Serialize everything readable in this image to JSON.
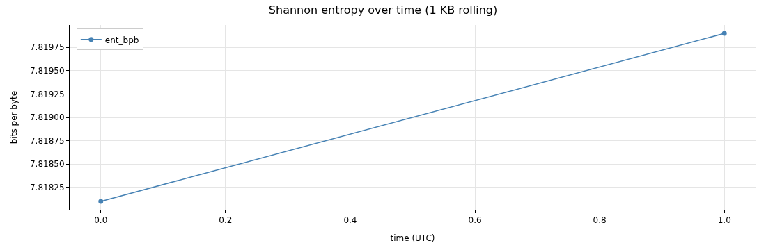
{
  "chart_data": {
    "type": "line",
    "title": "Shannon entropy over time (1 KB rolling)",
    "xlabel": "time (UTC)",
    "ylabel": "bits per byte",
    "x": [
      0,
      1
    ],
    "series": [
      {
        "name": "ent_bpb",
        "color": "#4682b4",
        "values": [
          7.8181,
          7.8199
        ]
      }
    ],
    "xlim": [
      -0.05,
      1.05
    ],
    "xticks": [
      {
        "value": 0,
        "label": "0.0"
      },
      {
        "value": 0.2,
        "label": "0.2"
      },
      {
        "value": 0.4,
        "label": "0.4"
      },
      {
        "value": 0.6,
        "label": "0.6"
      },
      {
        "value": 0.8,
        "label": "0.8"
      },
      {
        "value": 1,
        "label": "1.0"
      }
    ],
    "ylim": [
      7.81801,
      7.81999
    ],
    "yticks": [
      7.81825,
      {
        "value": 7.8185,
        "label": "7.81850"
      },
      7.81875,
      {
        "value": 7.819,
        "label": "7.81900"
      },
      7.81925,
      {
        "value": 7.8195,
        "label": "7.81950"
      },
      7.81975
    ],
    "grid": true,
    "legend": "top left",
    "marker": "circle",
    "line_style": "solid"
  }
}
